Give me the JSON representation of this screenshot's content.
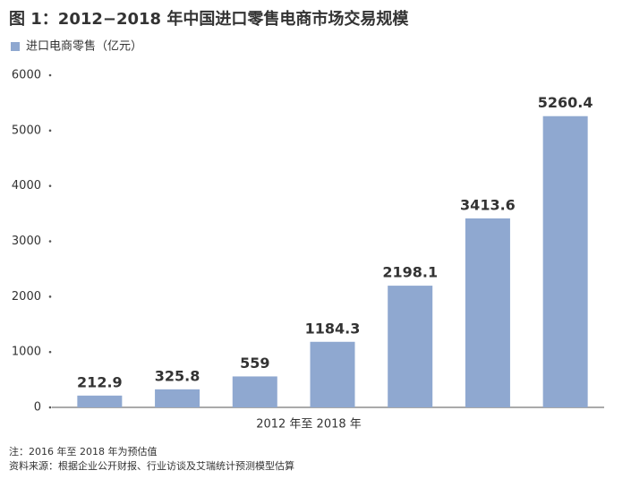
{
  "chart_data": {
    "type": "bar",
    "title": "图 1：2012−2018 年中国进口零售电商市场交易规模",
    "x_label": "2012 年至 2018 年",
    "categories": [
      null,
      null,
      null,
      null,
      null,
      null,
      null
    ],
    "series": [
      {
        "name": "进口电商零售（亿元）",
        "color": "#8fa8d0",
        "values": [
          212.9,
          325.8,
          559,
          1184.3,
          2198.1,
          3413.6,
          5260.4
        ]
      }
    ],
    "ylim": [
      0,
      6000
    ],
    "yticks": [
      0,
      1000,
      2000,
      3000,
      4000,
      5000,
      6000
    ],
    "notes": [
      "注：2016 年至 2018 年为预估值",
      "资料来源：根据企业公开财报、行业访谈及艾瑞统计预测模型估算"
    ]
  }
}
